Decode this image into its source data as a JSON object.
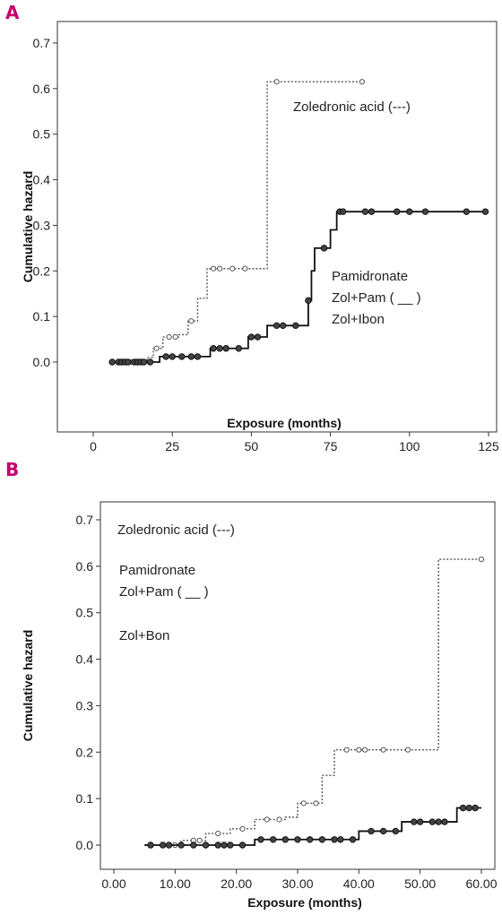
{
  "panels": {
    "a": {
      "letter": "A"
    },
    "b": {
      "letter": "B"
    }
  },
  "chart_data": [
    {
      "type": "line",
      "subtype": "step",
      "panel": "A",
      "xlabel": "Exposure (months)",
      "ylabel": "Cumulative hazard",
      "xlim": [
        0,
        125
      ],
      "ylim": [
        0,
        0.7
      ],
      "xticks": [
        "0",
        "25",
        "50",
        "75",
        "100",
        "125"
      ],
      "yticks": [
        "0.0",
        "0.1",
        "0.2",
        "0.3",
        "0.4",
        "0.5",
        "0.6",
        "0.7"
      ],
      "grid": false,
      "annotations": [
        "Zoledronic acid (---)",
        "Pamidronate",
        "Zol+Pam ( __ )",
        "Zol+Ibon"
      ],
      "series": [
        {
          "style": "dotted",
          "x": [
            5,
            17,
            19,
            22,
            27,
            30,
            33,
            36,
            45,
            55,
            86
          ],
          "y": [
            0.0,
            0.01,
            0.03,
            0.055,
            0.06,
            0.09,
            0.14,
            0.205,
            0.205,
            0.615,
            0.615
          ],
          "censored_x": [
            8,
            12,
            20,
            24,
            26,
            31,
            38,
            40,
            44,
            48,
            58,
            85
          ]
        },
        {
          "style": "solid",
          "x": [
            5,
            12,
            21,
            37,
            45,
            49,
            55,
            67,
            68,
            69,
            70,
            71,
            72,
            75,
            77,
            125
          ],
          "y": [
            0.0,
            0.0,
            0.012,
            0.03,
            0.03,
            0.055,
            0.08,
            0.08,
            0.135,
            0.2,
            0.25,
            0.25,
            0.25,
            0.29,
            0.33,
            0.33
          ],
          "censored_x": [
            6,
            8,
            9,
            10,
            11,
            13,
            14,
            15,
            16,
            18,
            23,
            25,
            28,
            31,
            33,
            38,
            40,
            42,
            46,
            50,
            52,
            58,
            60,
            64,
            68,
            73,
            78,
            79,
            86,
            88,
            96,
            100,
            105,
            118,
            124
          ]
        }
      ]
    },
    {
      "type": "line",
      "subtype": "step",
      "panel": "B",
      "xlabel": "Exposure (months)",
      "ylabel": "Cumulative hazard",
      "xlim": [
        0,
        60
      ],
      "ylim": [
        0,
        0.7
      ],
      "xticks": [
        "0.00",
        "10.00",
        "20.00",
        "30.00",
        "40.00",
        "50.00",
        "60.00"
      ],
      "yticks": [
        "0.0",
        "0.1",
        "0.2",
        "0.3",
        "0.4",
        "0.5",
        "0.6",
        "0.7"
      ],
      "grid": false,
      "annotations": [
        "Zoledronic acid (---)",
        "Pamidronate",
        "Zol+Pam ( __ )",
        "Zol+Bon"
      ],
      "series": [
        {
          "style": "dotted",
          "x": [
            5,
            11,
            15,
            19,
            23,
            28,
            30,
            34,
            36,
            53,
            60
          ],
          "y": [
            0.0,
            0.01,
            0.025,
            0.035,
            0.055,
            0.06,
            0.09,
            0.15,
            0.205,
            0.615,
            0.615
          ],
          "censored_x": [
            6,
            8,
            10,
            13,
            14,
            17,
            21,
            25,
            27,
            31,
            33,
            38,
            40,
            41,
            44,
            48,
            60
          ]
        },
        {
          "style": "solid",
          "x": [
            5,
            12,
            20,
            23,
            38,
            40,
            47,
            56,
            60
          ],
          "y": [
            0.0,
            0.0,
            0.0,
            0.012,
            0.012,
            0.03,
            0.05,
            0.08,
            0.08
          ],
          "censored_x": [
            6,
            8,
            9,
            11,
            13,
            15,
            17,
            18,
            19,
            21,
            24,
            26,
            28,
            30,
            32,
            34,
            36,
            37,
            39,
            42,
            44,
            46,
            49,
            50,
            52,
            53,
            54,
            57,
            58,
            59
          ]
        }
      ]
    }
  ]
}
